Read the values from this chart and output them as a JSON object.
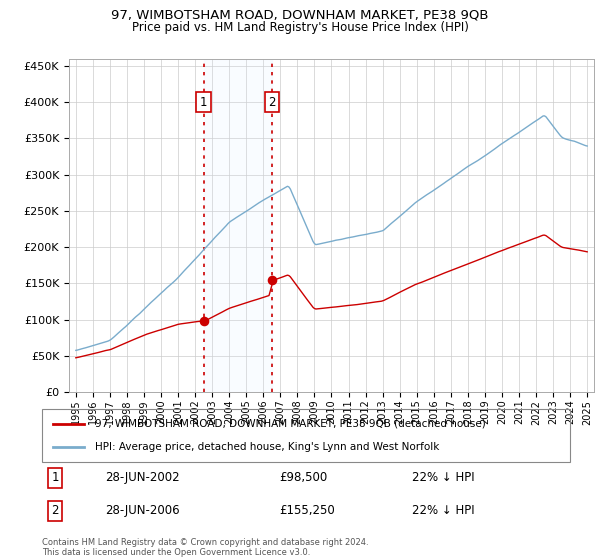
{
  "title": "97, WIMBOTSHAM ROAD, DOWNHAM MARKET, PE38 9QB",
  "subtitle": "Price paid vs. HM Land Registry's House Price Index (HPI)",
  "red_label": "97, WIMBOTSHAM ROAD, DOWNHAM MARKET, PE38 9QB (detached house)",
  "blue_label": "HPI: Average price, detached house, King's Lynn and West Norfolk",
  "annotation1": {
    "num": "1",
    "date": "28-JUN-2002",
    "price": "£98,500",
    "pct": "22% ↓ HPI"
  },
  "annotation2": {
    "num": "2",
    "date": "28-JUN-2006",
    "price": "£155,250",
    "pct": "22% ↓ HPI"
  },
  "footnote": "Contains HM Land Registry data © Crown copyright and database right 2024.\nThis data is licensed under the Open Government Licence v3.0.",
  "purchase1_year": 2002.5,
  "purchase1_price": 98500,
  "purchase2_year": 2006.5,
  "purchase2_price": 155250,
  "ylim": [
    0,
    460000
  ],
  "yticks": [
    0,
    50000,
    100000,
    150000,
    200000,
    250000,
    300000,
    350000,
    400000,
    450000
  ],
  "background_color": "#ffffff",
  "plot_bg_color": "#ffffff",
  "grid_color": "#cccccc",
  "red_color": "#cc0000",
  "blue_color": "#7aaccc",
  "shade_color": "#ddeeff"
}
